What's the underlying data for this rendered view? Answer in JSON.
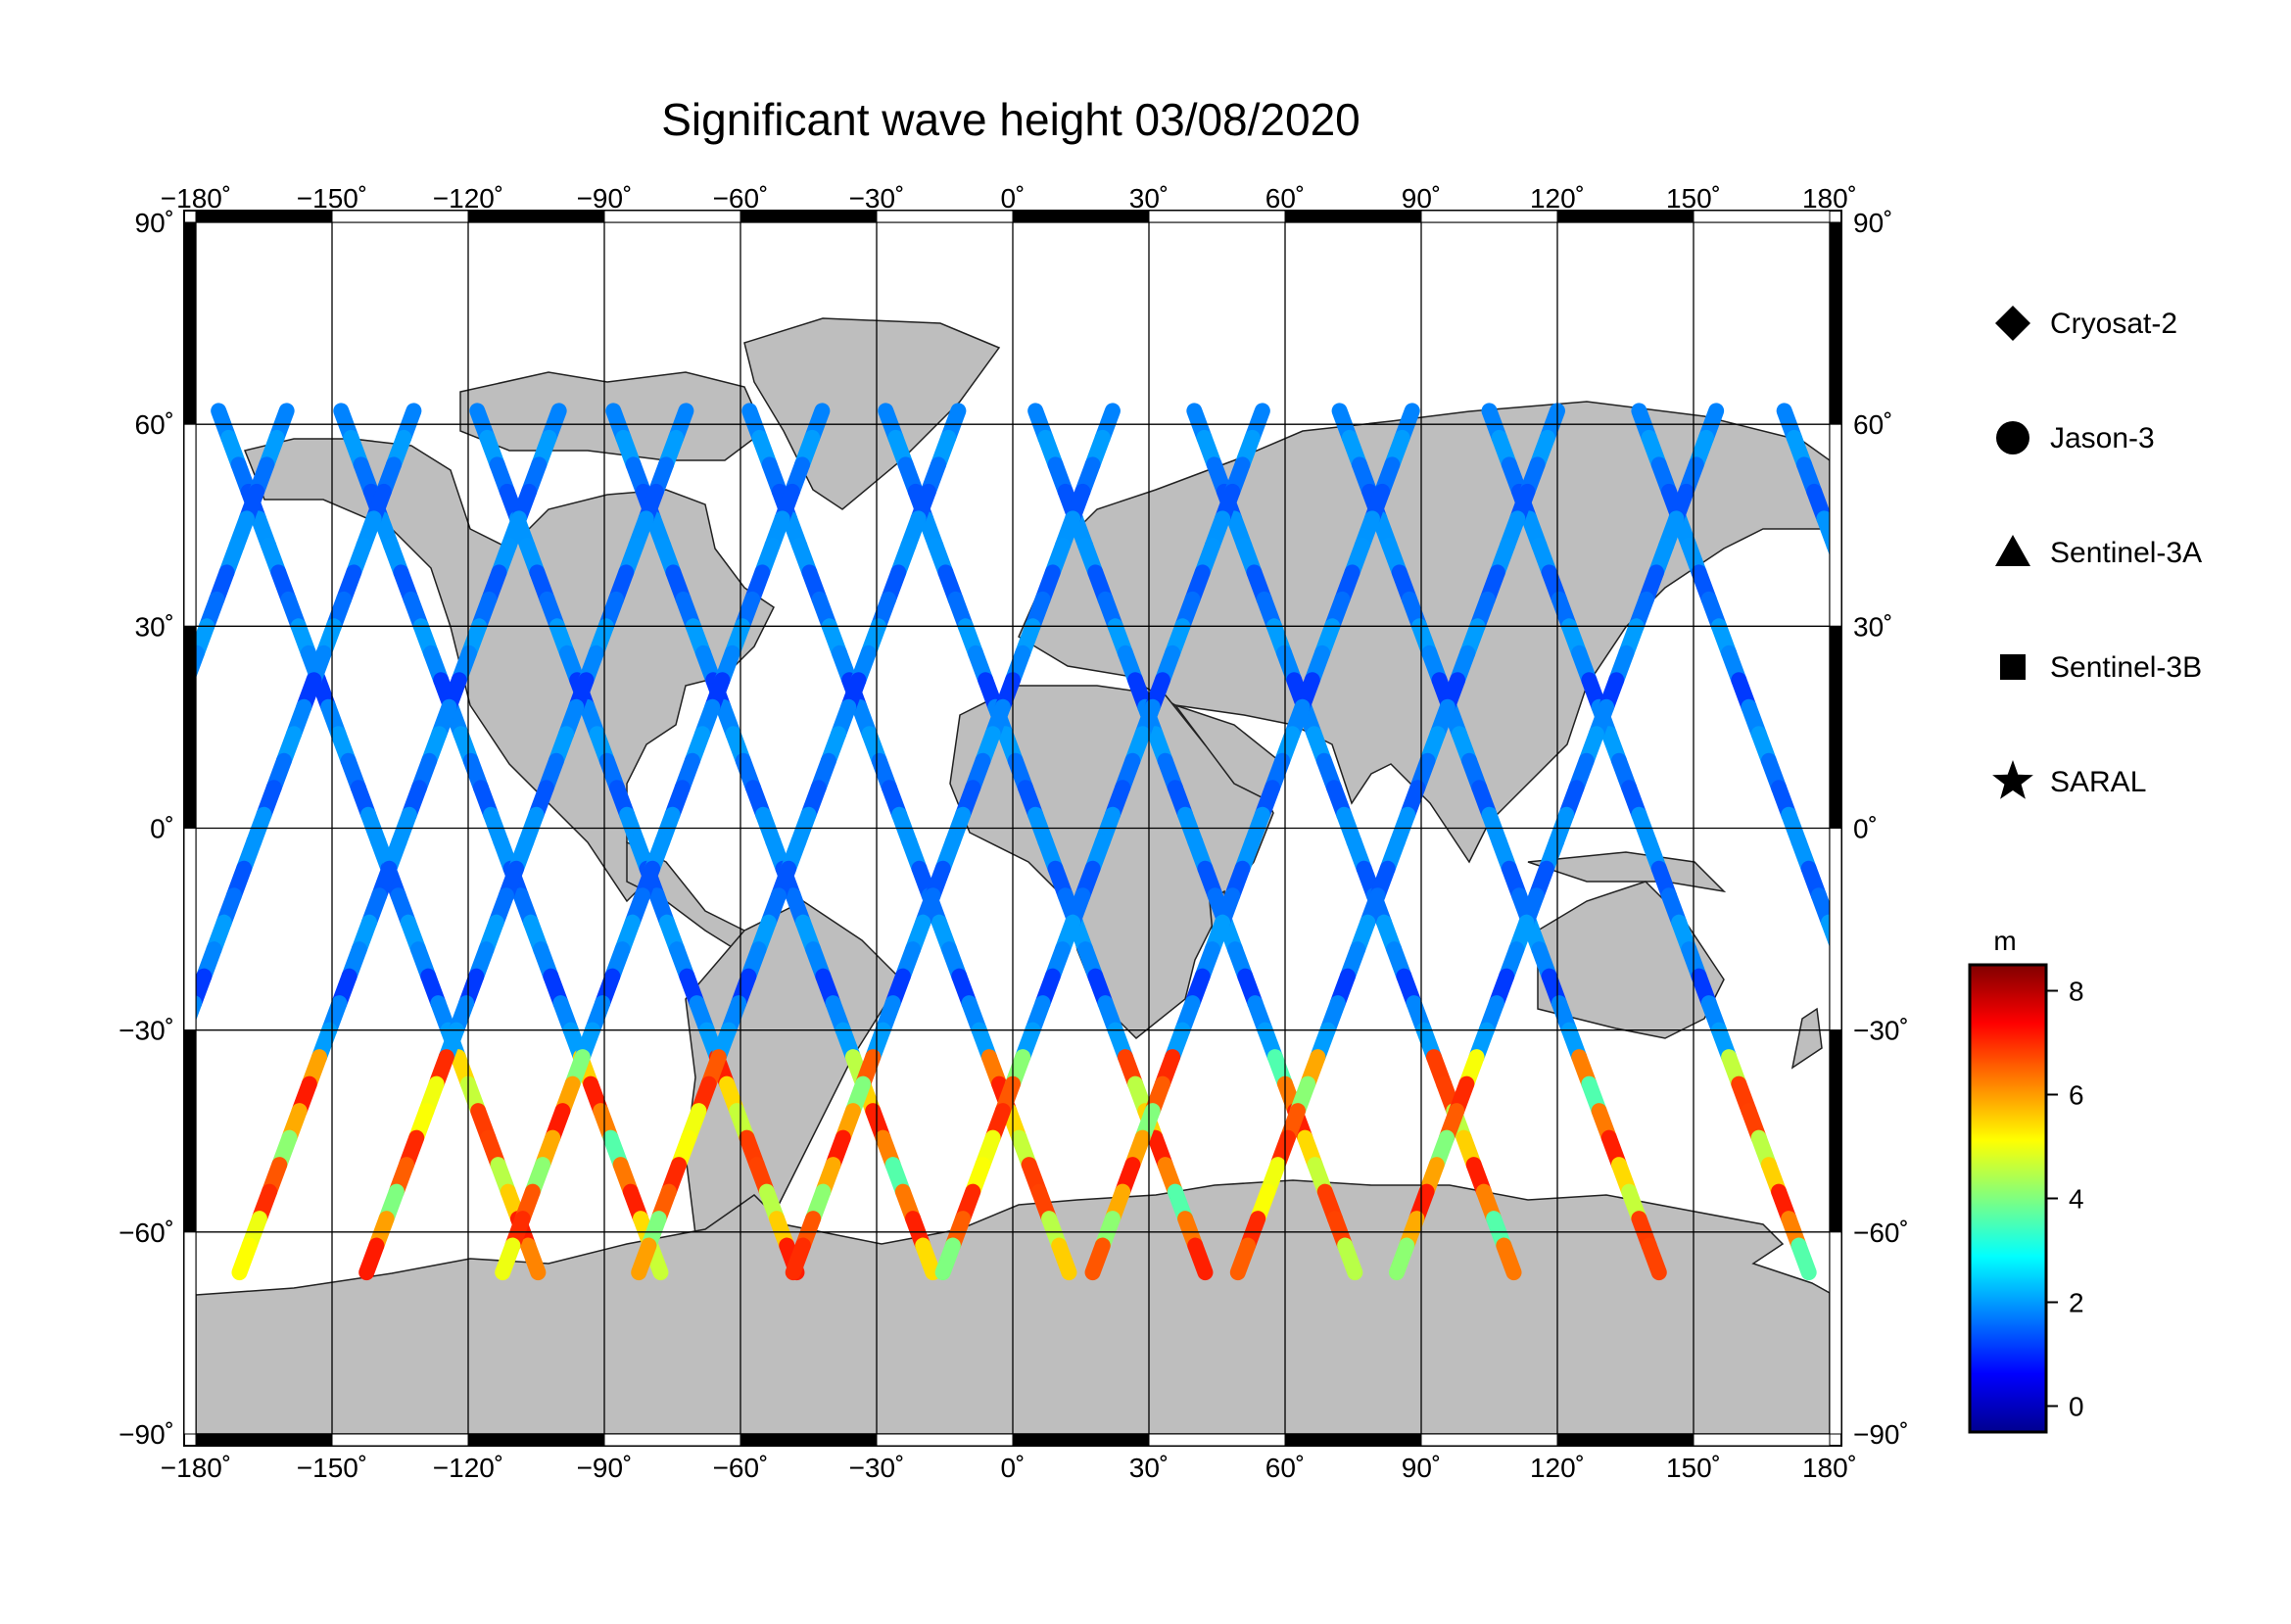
{
  "title": "Significant wave height 03/08/2020",
  "map": {
    "lon_ticks": [
      "−180˚",
      "−150˚",
      "−120˚",
      "−90˚",
      "−60˚",
      "−30˚",
      "0˚",
      "30˚",
      "60˚",
      "90˚",
      "120˚",
      "150˚",
      "180˚"
    ],
    "lat_ticks": [
      "90˚",
      "60˚",
      "30˚",
      "0˚",
      "−30˚",
      "−60˚",
      "−90˚"
    ],
    "lon_range": [
      -180,
      180
    ],
    "lat_range": [
      -90,
      90
    ],
    "gridlines": true,
    "land_color": "#bebebe",
    "ocean_color": "#ffffff"
  },
  "legend": {
    "placement": "right",
    "items": [
      {
        "label": "Cryosat-2",
        "shape": "diamond"
      },
      {
        "label": "Jason-3",
        "shape": "circle"
      },
      {
        "label": "Sentinel-3A",
        "shape": "triangle"
      },
      {
        "label": "Sentinel-3B",
        "shape": "square"
      },
      {
        "label": "SARAL",
        "shape": "star"
      }
    ]
  },
  "colorbar": {
    "unit": "m",
    "ticks": [
      "8",
      "6",
      "4",
      "2",
      "0"
    ],
    "range": [
      -0.5,
      8.5
    ],
    "colormap": "jet"
  }
}
